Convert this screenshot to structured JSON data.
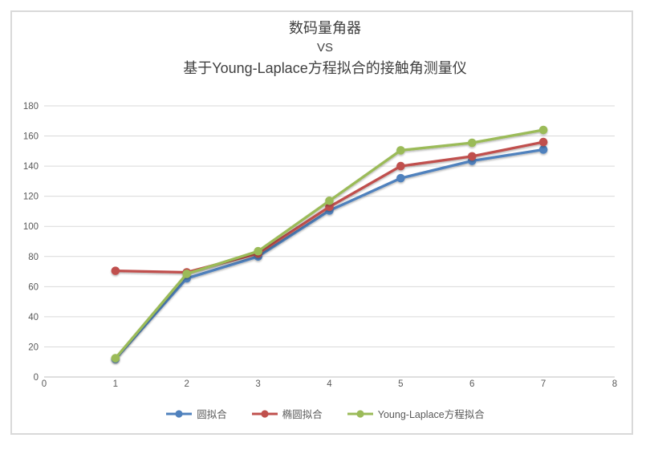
{
  "title": {
    "line1": "数码量角器",
    "line2": "VS",
    "line3": "基于Young-Laplace方程拟合的接触角测量仪"
  },
  "colors": {
    "grid": "#D9D9D9",
    "axis": "#BFBFBF",
    "tick_label": "#595959",
    "title_text": "#404040",
    "frame_border": "#D9D9D9",
    "background": "#FFFFFF"
  },
  "chart_data": {
    "type": "line",
    "title": "数码量角器 VS 基于Young-Laplace方程拟合的接触角测量仪",
    "x": [
      1,
      2,
      3,
      4,
      5,
      6,
      7
    ],
    "xlim": [
      0,
      8
    ],
    "ylim": [
      0,
      180
    ],
    "x_ticks": [
      "0",
      "1",
      "2",
      "3",
      "4",
      "5",
      "6",
      "7",
      "8"
    ],
    "y_ticks": [
      "0",
      "20",
      "40",
      "60",
      "80",
      "100",
      "120",
      "140",
      "160",
      "180"
    ],
    "grid": true,
    "legend_position": "bottom",
    "series": [
      {
        "name": "圆拟合",
        "color": "#4F81BD",
        "marker": "circle",
        "values": [
          12,
          65.5,
          80,
          110.5,
          132,
          143.5,
          151
        ]
      },
      {
        "name": "椭圆拟合",
        "color": "#C0504D",
        "marker": "circle",
        "values": [
          70.5,
          69.5,
          82,
          113,
          140,
          146.5,
          156
        ]
      },
      {
        "name": "Young-Laplace方程拟合",
        "color": "#9BBB59",
        "marker": "circle",
        "values": [
          12.5,
          68.5,
          83.5,
          117,
          150.5,
          155.5,
          164
        ]
      }
    ]
  }
}
